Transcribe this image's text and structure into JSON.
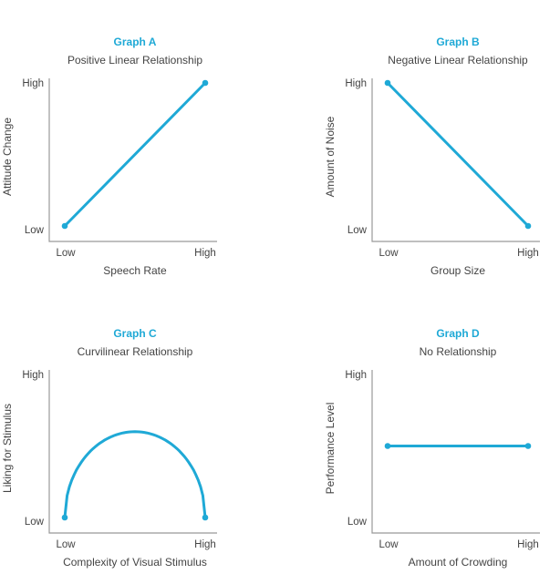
{
  "chart_data": [
    {
      "type": "line",
      "title": "Graph A",
      "subtitle": "Positive Linear Relationship",
      "xlabel": "Speech Rate",
      "ylabel": "Attitude Change",
      "xticks": [
        "Low",
        "High"
      ],
      "yticks": [
        "Low",
        "High"
      ],
      "xlim": [
        0,
        1
      ],
      "ylim": [
        0,
        1
      ],
      "x": [
        0,
        1
      ],
      "y": [
        0,
        1
      ],
      "curve": "linear",
      "markers": [
        [
          0,
          0
        ],
        [
          1,
          1
        ]
      ]
    },
    {
      "type": "line",
      "title": "Graph B",
      "subtitle": "Negative Linear Relationship",
      "xlabel": "Group Size",
      "ylabel": "Amount of Noise",
      "xticks": [
        "Low",
        "High"
      ],
      "yticks": [
        "Low",
        "High"
      ],
      "xlim": [
        0,
        1
      ],
      "ylim": [
        0,
        1
      ],
      "x": [
        0,
        1
      ],
      "y": [
        1,
        0
      ],
      "curve": "linear",
      "markers": [
        [
          0,
          1
        ],
        [
          1,
          0
        ]
      ]
    },
    {
      "type": "line",
      "title": "Graph C",
      "subtitle": "Curvilinear Relationship",
      "xlabel": "Complexity of Visual Stimulus",
      "ylabel": "Liking for Stimulus",
      "xticks": [
        "Low",
        "High"
      ],
      "yticks": [
        "Low",
        "High"
      ],
      "xlim": [
        0,
        1
      ],
      "ylim": [
        0,
        1
      ],
      "x": [
        0,
        0.5,
        1
      ],
      "y": [
        0,
        0.6,
        0
      ],
      "curve": "arch",
      "markers": [
        [
          0,
          0
        ],
        [
          1,
          0
        ]
      ]
    },
    {
      "type": "line",
      "title": "Graph D",
      "subtitle": "No Relationship",
      "xlabel": "Amount of Crowding",
      "ylabel": "Performance Level",
      "xticks": [
        "Low",
        "High"
      ],
      "yticks": [
        "Low",
        "High"
      ],
      "xlim": [
        0,
        1
      ],
      "ylim": [
        0,
        1
      ],
      "x": [
        0,
        1
      ],
      "y": [
        0.5,
        0.5
      ],
      "curve": "linear",
      "markers": [
        [
          0,
          0.5
        ],
        [
          1,
          0.5
        ]
      ]
    }
  ],
  "colors": {
    "accent": "#1fa9d6",
    "text": "#444444",
    "axis": "#999999"
  }
}
